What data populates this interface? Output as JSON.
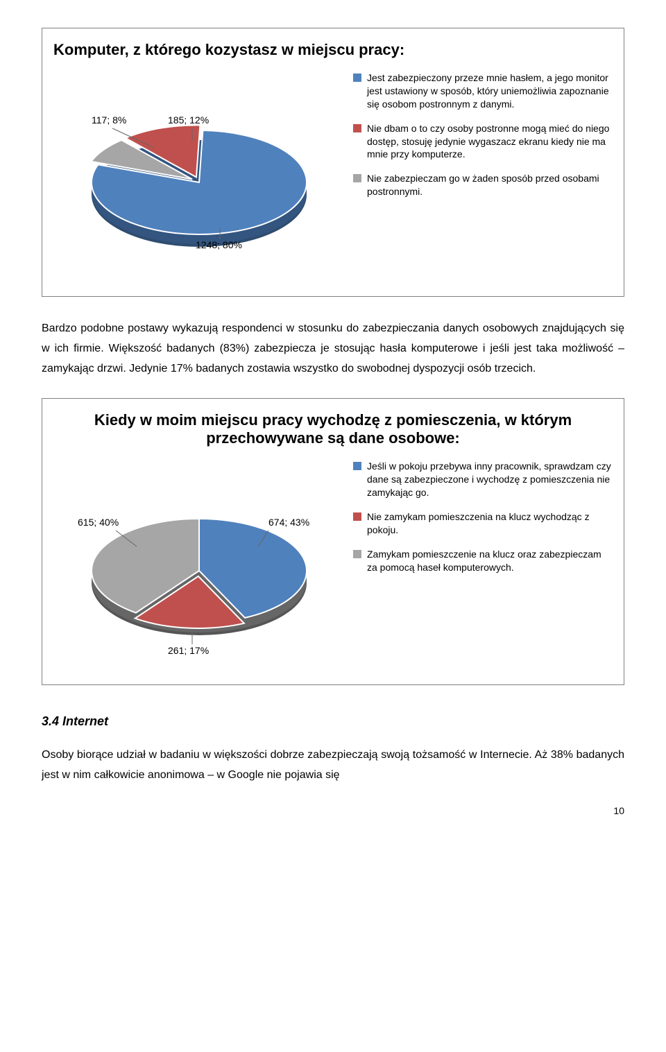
{
  "chart1": {
    "title": "Komputer, z którego kozystasz w miejscu pracy:",
    "slices": [
      {
        "label": "1248; 80%",
        "value": 80,
        "color": "#4f81bd",
        "legend": "Jest zabezpieczony przeze mnie hasłem, a jego monitor jest ustawiony w sposób, który uniemożliwia zapoznanie się osobom postronnym z danymi."
      },
      {
        "label": "185; 12%",
        "value": 12,
        "color": "#c0504d",
        "legend": "Nie dbam o to czy osoby postronne mogą mieć do niego dostęp, stosuję jedynie wygaszacz ekranu kiedy nie ma mnie przy komputerze."
      },
      {
        "label": "117; 8%",
        "value": 8,
        "color": "#a6a6a6",
        "legend": "Nie zabezpieczam go w żaden sposób przed osobami postronnymi."
      }
    ]
  },
  "para1": "Bardzo podobne postawy wykazują respondenci w stosunku do zabezpieczania danych osobowych znajdujących się w ich firmie. Większość badanych (83%) zabezpiecza je stosując hasła komputerowe i jeśli jest taka możliwość – zamykając drzwi. Jedynie 17% badanych zostawia wszystko do swobodnej dyspozycji osób trzecich.",
  "chart2": {
    "title": "Kiedy w moim miejscu pracy wychodzę z pomiesczenia, w którym przechowywane są dane osobowe:",
    "slices": [
      {
        "label": "674; 43%",
        "value": 43,
        "color": "#4f81bd",
        "legend": "Jeśli w pokoju przebywa inny pracownik, sprawdzam czy dane są zabezpieczone i wychodzę z pomieszczenia nie zamykając go."
      },
      {
        "label": "261; 17%",
        "value": 17,
        "color": "#c0504d",
        "legend": "Nie zamykam pomieszczenia na klucz wychodząc z pokoju."
      },
      {
        "label": "615; 40%",
        "value": 40,
        "color": "#a6a6a6",
        "legend": "Zamykam pomieszczenie na klucz oraz zabezpieczam za pomocą haseł komputerowych."
      }
    ]
  },
  "section_heading": "3.4 Internet",
  "para2": "Osoby biorące udział w badaniu w większości dobrze zabezpieczają swoją tożsamość w Internecie. Aż 38% badanych jest w nim całkowicie anonimowa – w Google nie pojawia się",
  "page_num": "10",
  "pie_style": {
    "stroke": "#ffffff",
    "stroke_width": 2
  }
}
